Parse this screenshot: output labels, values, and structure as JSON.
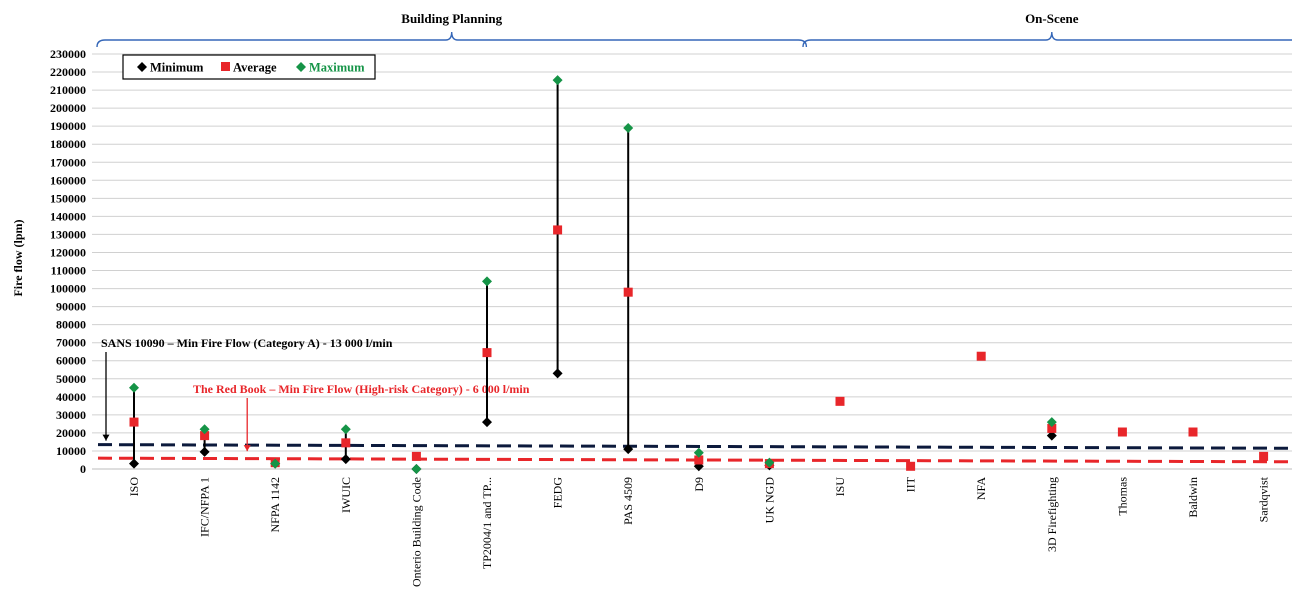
{
  "chart_data": {
    "type": "scatter",
    "ylabel": "Fire flow (lpm)",
    "ylim": [
      0,
      230000
    ],
    "ytick_step": 10000,
    "grid": true,
    "legend_position": "top-left",
    "categories": [
      "ISO",
      "IFC/NFPA 1",
      "NFPA 1142",
      "IWUIC",
      "Onterio Building Code",
      "TP2004/1 and TP...",
      "FEDG",
      "PAS 4509",
      "D9",
      "UK NGD",
      "ISU",
      "IIT",
      "NFA",
      "3D Firefighting",
      "Thomas",
      "Baldwin",
      "Sardqvist"
    ],
    "groups": [
      {
        "label": "Building Planning",
        "from": 0,
        "to": 9
      },
      {
        "label": "On-Scene",
        "from": 10,
        "to": 16
      }
    ],
    "series": [
      {
        "name": "Minimum",
        "color": "#000000",
        "marker": "diamond",
        "values": [
          3000,
          9500,
          3000,
          5500,
          0,
          26000,
          53000,
          11000,
          1500,
          2000,
          null,
          null,
          null,
          18500,
          null,
          null,
          null
        ]
      },
      {
        "name": "Average",
        "color": "#e8262a",
        "marker": "square",
        "values": [
          26000,
          18500,
          3500,
          14500,
          7000,
          64500,
          132500,
          98000,
          5000,
          3000,
          37500,
          1500,
          62500,
          22500,
          20500,
          20500,
          7000
        ]
      },
      {
        "name": "Maximum",
        "color": "#159447",
        "marker": "diamond",
        "values": [
          45000,
          22000,
          3000,
          22000,
          0,
          104000,
          215500,
          189000,
          9000,
          3500,
          null,
          null,
          null,
          26000,
          null,
          null,
          null
        ]
      }
    ],
    "reference_lines": [
      {
        "label": "SANS 10090 – Min  Fire Flow (Category A) - 13 000 l/min",
        "value_start": 13500,
        "value_end": 11500,
        "color": "#0c1a3c",
        "text_color": "#000000",
        "anchor_category": 0
      },
      {
        "label": "The Red Book – Min Fire Flow (High-risk  Category) - 6 000 l/min",
        "value_start": 6000,
        "value_end": 4000,
        "color": "#e8262a",
        "text_color": "#e8262a",
        "anchor_category": 2
      }
    ]
  }
}
